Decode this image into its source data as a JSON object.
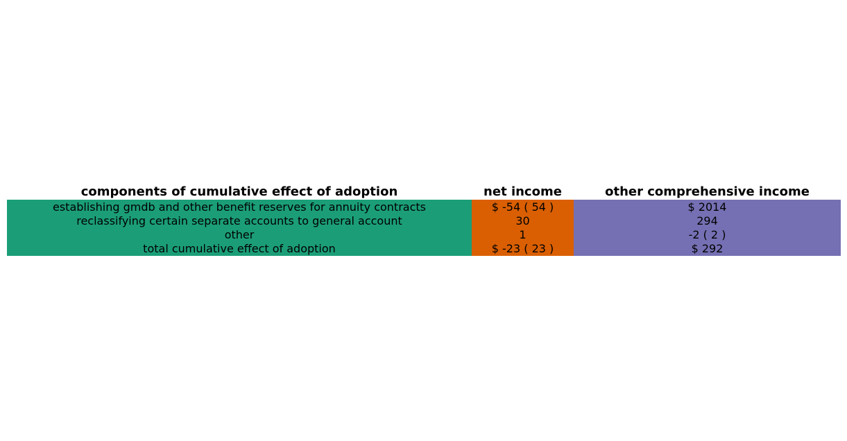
{
  "chart_data": {
    "type": "table",
    "columns": [
      {
        "header": "components of cumulative effect of adoption",
        "color": "#1b9e77"
      },
      {
        "header": "net income",
        "color": "#d95f02"
      },
      {
        "header": "other comprehensive income",
        "color": "#7570b3"
      }
    ],
    "rows": [
      [
        "establishing gmdb and other benefit reserves for annuity contracts",
        "$ -54 ( 54 )",
        "$ 2014"
      ],
      [
        "reclassifying certain separate accounts to general account",
        "30",
        "294"
      ],
      [
        "other",
        "1",
        "-2 ( 2 )"
      ],
      [
        "total cumulative effect of adoption",
        "$ -23 ( 23 )",
        "$ 292"
      ]
    ]
  }
}
